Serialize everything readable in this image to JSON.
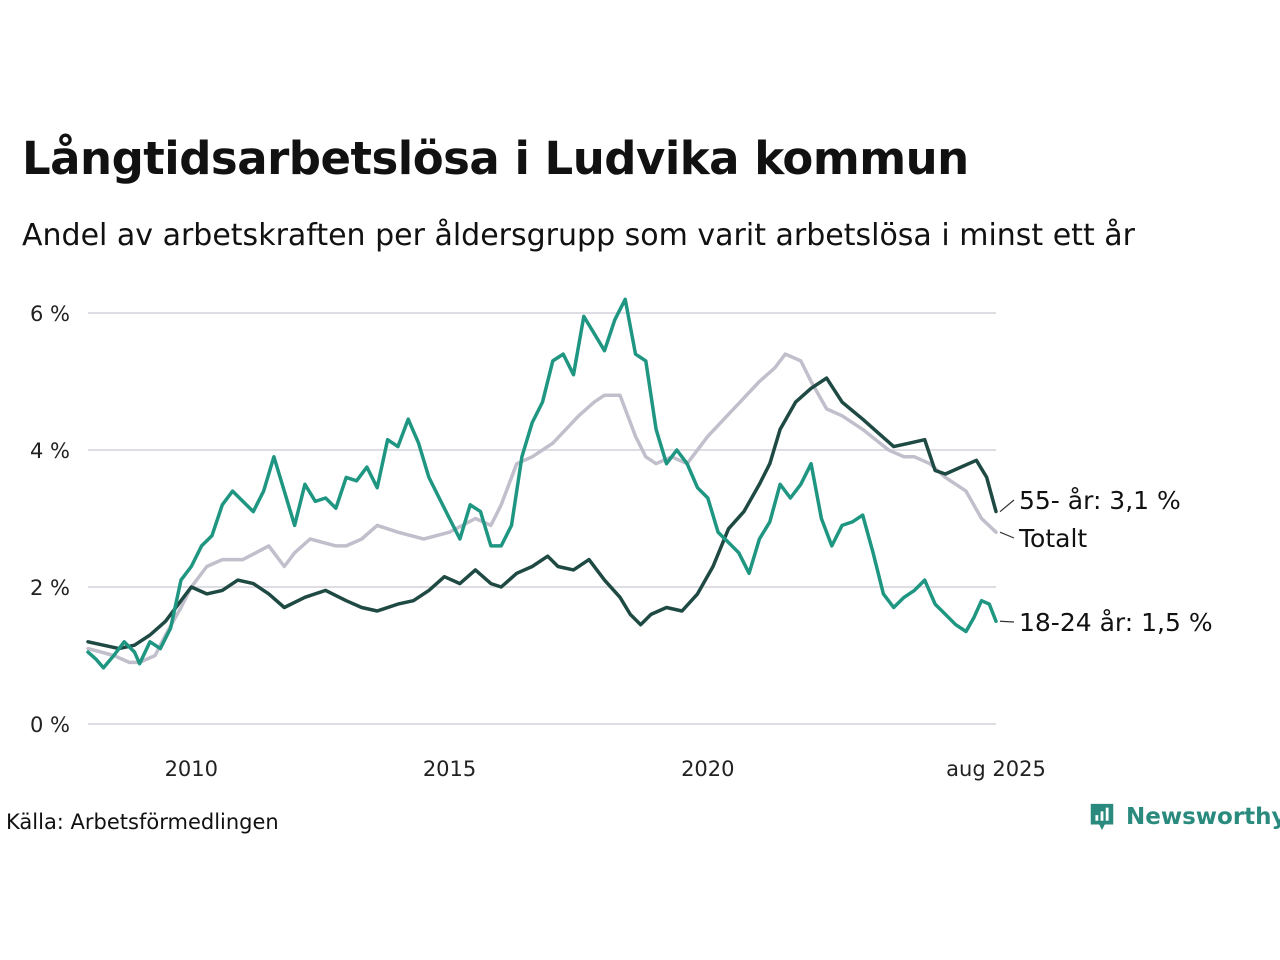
{
  "title": "Långtidsarbetslösa i Ludvika kommun",
  "subtitle": "Andel av arbetskraften per åldersgrupp som varit arbetslösa i minst ett år",
  "source": "Källa: Arbetsförmedlingen",
  "logo_text": "Newsworthy",
  "colors": {
    "totalt": "#c2bfcc",
    "age55": "#1f4a44",
    "age18_24": "#1f9682",
    "grid": "#dddde3",
    "brand": "#2a8a7e"
  },
  "chart_data": {
    "type": "line",
    "y_ticks": [
      "0 %",
      "2 %",
      "4 %",
      "6 %"
    ],
    "x_ticks": [
      "2010",
      "2015",
      "2020",
      "aug 2025"
    ],
    "ylim": [
      0,
      6.2
    ],
    "xlim": [
      2008.0,
      2025.58
    ],
    "grid": true,
    "end_labels": {
      "age55": "55- år: 3,1 %",
      "totalt": "Totalt",
      "age18_24": "18-24 år: 1,5 %"
    },
    "series": [
      {
        "key": "totalt",
        "points": [
          [
            2008.0,
            1.1
          ],
          [
            2008.5,
            1.0
          ],
          [
            2008.8,
            0.9
          ],
          [
            2009.0,
            0.9
          ],
          [
            2009.3,
            1.0
          ],
          [
            2009.5,
            1.3
          ],
          [
            2009.8,
            1.7
          ],
          [
            2010.0,
            2.0
          ],
          [
            2010.3,
            2.3
          ],
          [
            2010.6,
            2.4
          ],
          [
            2011.0,
            2.4
          ],
          [
            2011.5,
            2.6
          ],
          [
            2011.8,
            2.3
          ],
          [
            2012.0,
            2.5
          ],
          [
            2012.3,
            2.7
          ],
          [
            2012.8,
            2.6
          ],
          [
            2013.0,
            2.6
          ],
          [
            2013.3,
            2.7
          ],
          [
            2013.6,
            2.9
          ],
          [
            2014.0,
            2.8
          ],
          [
            2014.5,
            2.7
          ],
          [
            2015.0,
            2.8
          ],
          [
            2015.5,
            3.0
          ],
          [
            2015.8,
            2.9
          ],
          [
            2016.0,
            3.2
          ],
          [
            2016.3,
            3.8
          ],
          [
            2016.6,
            3.9
          ],
          [
            2017.0,
            4.1
          ],
          [
            2017.5,
            4.5
          ],
          [
            2017.8,
            4.7
          ],
          [
            2018.0,
            4.8
          ],
          [
            2018.3,
            4.8
          ],
          [
            2018.6,
            4.2
          ],
          [
            2018.8,
            3.9
          ],
          [
            2019.0,
            3.8
          ],
          [
            2019.3,
            3.9
          ],
          [
            2019.6,
            3.8
          ],
          [
            2020.0,
            4.2
          ],
          [
            2020.5,
            4.6
          ],
          [
            2021.0,
            5.0
          ],
          [
            2021.3,
            5.2
          ],
          [
            2021.5,
            5.4
          ],
          [
            2021.8,
            5.3
          ],
          [
            2022.0,
            5.0
          ],
          [
            2022.3,
            4.6
          ],
          [
            2022.6,
            4.5
          ],
          [
            2023.0,
            4.3
          ],
          [
            2023.5,
            4.0
          ],
          [
            2023.8,
            3.9
          ],
          [
            2024.0,
            3.9
          ],
          [
            2024.3,
            3.8
          ],
          [
            2024.6,
            3.6
          ],
          [
            2025.0,
            3.4
          ],
          [
            2025.3,
            3.0
          ],
          [
            2025.58,
            2.8
          ]
        ]
      },
      {
        "key": "age55",
        "points": [
          [
            2008.0,
            1.2
          ],
          [
            2008.3,
            1.15
          ],
          [
            2008.6,
            1.1
          ],
          [
            2008.9,
            1.15
          ],
          [
            2009.2,
            1.3
          ],
          [
            2009.5,
            1.5
          ],
          [
            2009.8,
            1.8
          ],
          [
            2010.0,
            2.0
          ],
          [
            2010.3,
            1.9
          ],
          [
            2010.6,
            1.95
          ],
          [
            2010.9,
            2.1
          ],
          [
            2011.2,
            2.05
          ],
          [
            2011.5,
            1.9
          ],
          [
            2011.8,
            1.7
          ],
          [
            2012.2,
            1.85
          ],
          [
            2012.6,
            1.95
          ],
          [
            2013.0,
            1.8
          ],
          [
            2013.3,
            1.7
          ],
          [
            2013.6,
            1.65
          ],
          [
            2014.0,
            1.75
          ],
          [
            2014.3,
            1.8
          ],
          [
            2014.6,
            1.95
          ],
          [
            2014.9,
            2.15
          ],
          [
            2015.2,
            2.05
          ],
          [
            2015.5,
            2.25
          ],
          [
            2015.8,
            2.05
          ],
          [
            2016.0,
            2.0
          ],
          [
            2016.3,
            2.2
          ],
          [
            2016.6,
            2.3
          ],
          [
            2016.9,
            2.45
          ],
          [
            2017.1,
            2.3
          ],
          [
            2017.4,
            2.25
          ],
          [
            2017.7,
            2.4
          ],
          [
            2018.0,
            2.1
          ],
          [
            2018.3,
            1.85
          ],
          [
            2018.5,
            1.6
          ],
          [
            2018.7,
            1.45
          ],
          [
            2018.9,
            1.6
          ],
          [
            2019.2,
            1.7
          ],
          [
            2019.5,
            1.65
          ],
          [
            2019.8,
            1.9
          ],
          [
            2020.1,
            2.3
          ],
          [
            2020.4,
            2.85
          ],
          [
            2020.7,
            3.1
          ],
          [
            2021.0,
            3.5
          ],
          [
            2021.2,
            3.8
          ],
          [
            2021.4,
            4.3
          ],
          [
            2021.7,
            4.7
          ],
          [
            2022.0,
            4.9
          ],
          [
            2022.3,
            5.05
          ],
          [
            2022.6,
            4.7
          ],
          [
            2023.0,
            4.45
          ],
          [
            2023.3,
            4.25
          ],
          [
            2023.6,
            4.05
          ],
          [
            2023.9,
            4.1
          ],
          [
            2024.2,
            4.15
          ],
          [
            2024.4,
            3.7
          ],
          [
            2024.6,
            3.65
          ],
          [
            2024.9,
            3.75
          ],
          [
            2025.2,
            3.85
          ],
          [
            2025.4,
            3.6
          ],
          [
            2025.58,
            3.1
          ]
        ]
      },
      {
        "key": "age18_24",
        "points": [
          [
            2008.0,
            1.05
          ],
          [
            2008.15,
            0.95
          ],
          [
            2008.3,
            0.82
          ],
          [
            2008.5,
            1.0
          ],
          [
            2008.7,
            1.2
          ],
          [
            2008.9,
            1.05
          ],
          [
            2009.0,
            0.88
          ],
          [
            2009.2,
            1.2
          ],
          [
            2009.4,
            1.1
          ],
          [
            2009.6,
            1.4
          ],
          [
            2009.8,
            2.1
          ],
          [
            2010.0,
            2.3
          ],
          [
            2010.2,
            2.6
          ],
          [
            2010.4,
            2.75
          ],
          [
            2010.6,
            3.2
          ],
          [
            2010.8,
            3.4
          ],
          [
            2011.0,
            3.25
          ],
          [
            2011.2,
            3.1
          ],
          [
            2011.4,
            3.4
          ],
          [
            2011.6,
            3.9
          ],
          [
            2011.8,
            3.4
          ],
          [
            2012.0,
            2.9
          ],
          [
            2012.2,
            3.5
          ],
          [
            2012.4,
            3.25
          ],
          [
            2012.6,
            3.3
          ],
          [
            2012.8,
            3.15
          ],
          [
            2013.0,
            3.6
          ],
          [
            2013.2,
            3.55
          ],
          [
            2013.4,
            3.75
          ],
          [
            2013.6,
            3.45
          ],
          [
            2013.8,
            4.15
          ],
          [
            2014.0,
            4.05
          ],
          [
            2014.2,
            4.45
          ],
          [
            2014.4,
            4.1
          ],
          [
            2014.6,
            3.6
          ],
          [
            2014.8,
            3.3
          ],
          [
            2015.0,
            3.0
          ],
          [
            2015.2,
            2.7
          ],
          [
            2015.4,
            3.2
          ],
          [
            2015.6,
            3.1
          ],
          [
            2015.8,
            2.6
          ],
          [
            2016.0,
            2.6
          ],
          [
            2016.2,
            2.9
          ],
          [
            2016.4,
            3.9
          ],
          [
            2016.6,
            4.4
          ],
          [
            2016.8,
            4.7
          ],
          [
            2017.0,
            5.3
          ],
          [
            2017.2,
            5.4
          ],
          [
            2017.4,
            5.1
          ],
          [
            2017.6,
            5.95
          ],
          [
            2017.8,
            5.7
          ],
          [
            2018.0,
            5.45
          ],
          [
            2018.2,
            5.9
          ],
          [
            2018.4,
            6.2
          ],
          [
            2018.6,
            5.4
          ],
          [
            2018.8,
            5.3
          ],
          [
            2019.0,
            4.3
          ],
          [
            2019.2,
            3.8
          ],
          [
            2019.4,
            4.0
          ],
          [
            2019.6,
            3.8
          ],
          [
            2019.8,
            3.45
          ],
          [
            2020.0,
            3.3
          ],
          [
            2020.2,
            2.8
          ],
          [
            2020.4,
            2.65
          ],
          [
            2020.6,
            2.5
          ],
          [
            2020.8,
            2.2
          ],
          [
            2021.0,
            2.7
          ],
          [
            2021.2,
            2.95
          ],
          [
            2021.4,
            3.5
          ],
          [
            2021.6,
            3.3
          ],
          [
            2021.8,
            3.5
          ],
          [
            2022.0,
            3.8
          ],
          [
            2022.2,
            3.0
          ],
          [
            2022.4,
            2.6
          ],
          [
            2022.6,
            2.9
          ],
          [
            2022.8,
            2.95
          ],
          [
            2023.0,
            3.05
          ],
          [
            2023.2,
            2.5
          ],
          [
            2023.4,
            1.9
          ],
          [
            2023.6,
            1.7
          ],
          [
            2023.8,
            1.85
          ],
          [
            2024.0,
            1.95
          ],
          [
            2024.2,
            2.1
          ],
          [
            2024.4,
            1.75
          ],
          [
            2024.6,
            1.6
          ],
          [
            2024.8,
            1.45
          ],
          [
            2025.0,
            1.35
          ],
          [
            2025.15,
            1.55
          ],
          [
            2025.3,
            1.8
          ],
          [
            2025.45,
            1.75
          ],
          [
            2025.58,
            1.5
          ]
        ]
      }
    ]
  }
}
